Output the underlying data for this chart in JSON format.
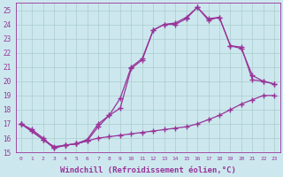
{
  "background_color": "#cce8ee",
  "grid_color": "#aacccc",
  "line_color": "#993399",
  "marker": "+",
  "markersize": 4,
  "linewidth": 0.9,
  "xlabel": "Windchill (Refroidissement éolien,°C)",
  "xlabel_fontsize": 6.5,
  "xlim": [
    -0.5,
    23.5
  ],
  "ylim": [
    15,
    25.5
  ],
  "yticks": [
    15,
    16,
    17,
    18,
    19,
    20,
    21,
    22,
    23,
    24,
    25
  ],
  "xticks": [
    0,
    1,
    2,
    3,
    4,
    5,
    6,
    7,
    8,
    9,
    10,
    11,
    12,
    13,
    14,
    15,
    16,
    17,
    18,
    19,
    20,
    21,
    22,
    23
  ],
  "curve1_x": [
    0,
    1,
    2,
    3,
    4,
    5,
    6,
    7,
    8,
    9,
    10,
    11,
    12,
    13,
    14,
    15,
    16,
    17,
    18,
    19,
    20,
    21,
    22,
    23
  ],
  "curve1_y": [
    17.0,
    16.6,
    16.0,
    15.3,
    15.5,
    15.6,
    15.8,
    16.0,
    16.1,
    16.2,
    16.3,
    16.4,
    16.5,
    16.6,
    16.7,
    16.8,
    17.0,
    17.3,
    17.6,
    18.0,
    18.4,
    18.7,
    19.0,
    19.0
  ],
  "curve2_x": [
    0,
    1,
    2,
    3,
    4,
    5,
    6,
    7,
    8,
    9,
    10,
    11,
    12,
    13,
    14,
    15,
    16,
    17,
    18,
    19,
    20,
    21,
    22,
    23
  ],
  "curve2_y": [
    17.0,
    16.5,
    15.9,
    15.3,
    15.5,
    15.6,
    15.8,
    16.8,
    17.6,
    18.1,
    20.9,
    21.5,
    23.6,
    24.0,
    24.1,
    24.5,
    25.2,
    24.4,
    24.5,
    22.5,
    22.4,
    20.1,
    20.0,
    19.8
  ],
  "curve3_x": [
    0,
    2,
    3,
    4,
    5,
    6,
    7,
    8,
    9,
    10,
    11,
    12,
    13,
    14,
    15,
    16,
    17,
    18,
    19,
    20,
    21,
    22,
    23
  ],
  "curve3_y": [
    17.0,
    15.9,
    15.4,
    15.5,
    15.6,
    15.9,
    17.0,
    17.6,
    18.8,
    21.0,
    21.6,
    23.6,
    24.0,
    24.0,
    24.4,
    25.2,
    24.3,
    24.5,
    22.5,
    22.3,
    20.4,
    20.0,
    19.8
  ]
}
